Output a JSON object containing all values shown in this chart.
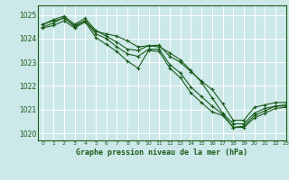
{
  "title": "Graphe pression niveau de la mer (hPa)",
  "bg_color": "#cce8e8",
  "grid_color": "#b0d4d4",
  "line_color": "#1a5c1a",
  "marker_color": "#1a5c1a",
  "xlim": [
    -0.5,
    23
  ],
  "ylim": [
    1019.7,
    1025.4
  ],
  "yticks": [
    1020,
    1021,
    1022,
    1023,
    1024,
    1025
  ],
  "xticks": [
    0,
    1,
    2,
    3,
    4,
    5,
    6,
    7,
    8,
    9,
    10,
    11,
    12,
    13,
    14,
    15,
    16,
    17,
    18,
    19,
    20,
    21,
    22,
    23
  ],
  "series": [
    [
      1024.6,
      1024.8,
      1024.95,
      1024.6,
      1024.85,
      1024.35,
      1024.1,
      1023.85,
      1023.55,
      1023.5,
      1023.7,
      1023.72,
      1023.25,
      1023.0,
      1022.6,
      1022.2,
      1021.85,
      1021.25,
      1020.55,
      1020.55,
      1021.1,
      1021.2,
      1021.3,
      1021.3
    ],
    [
      1024.6,
      1024.75,
      1024.85,
      1024.55,
      1024.75,
      1024.3,
      1024.2,
      1024.1,
      1023.9,
      1023.65,
      1023.7,
      1023.65,
      1023.4,
      1023.1,
      1022.65,
      1022.15,
      1021.5,
      1020.85,
      1020.4,
      1020.4,
      1020.85,
      1021.05,
      1021.15,
      1021.2
    ],
    [
      1024.5,
      1024.65,
      1024.9,
      1024.5,
      1024.75,
      1024.2,
      1024.0,
      1023.65,
      1023.35,
      1023.25,
      1023.55,
      1023.55,
      1022.9,
      1022.55,
      1021.95,
      1021.55,
      1021.15,
      1020.8,
      1020.25,
      1020.3,
      1020.75,
      1020.95,
      1021.15,
      1021.15
    ],
    [
      1024.45,
      1024.55,
      1024.75,
      1024.45,
      1024.7,
      1024.05,
      1023.75,
      1023.45,
      1023.05,
      1022.75,
      1023.5,
      1023.45,
      1022.75,
      1022.35,
      1021.7,
      1021.3,
      1020.9,
      1020.75,
      1020.25,
      1020.25,
      1020.65,
      1020.85,
      1021.05,
      1021.1
    ]
  ]
}
